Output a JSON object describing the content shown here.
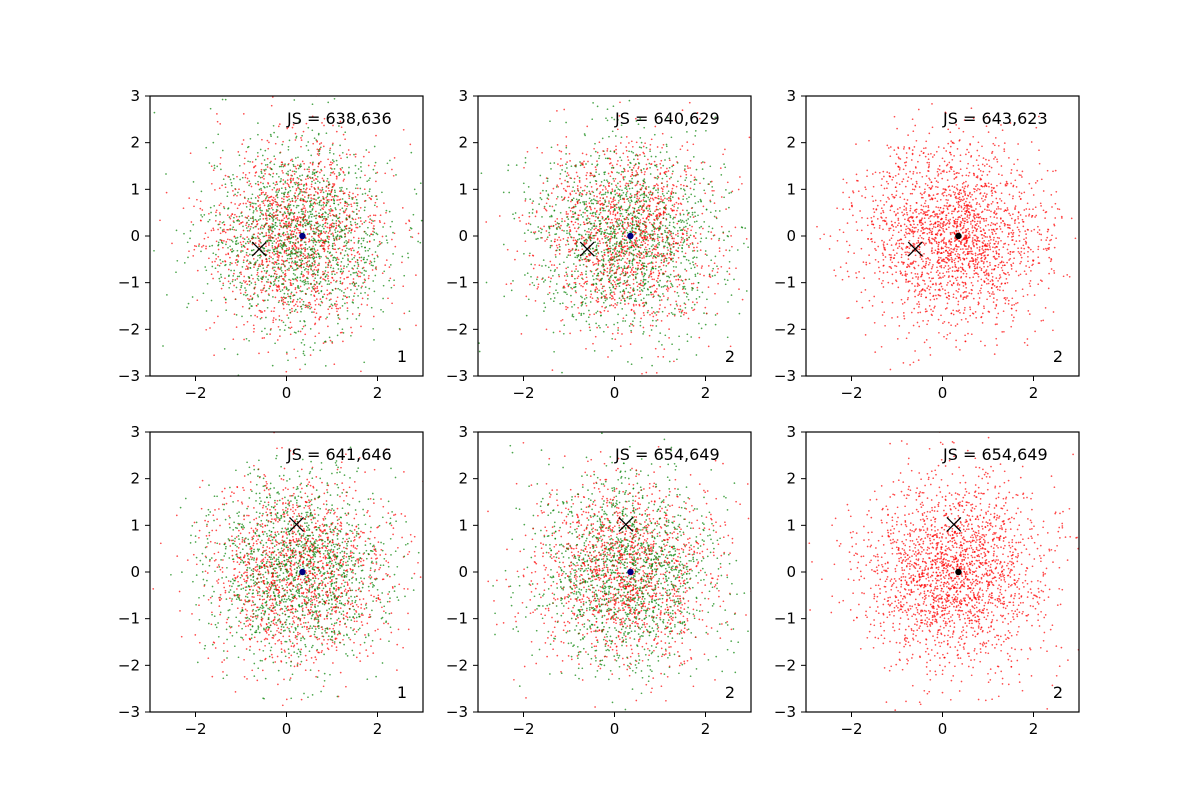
{
  "figure": {
    "background": "#ffffff",
    "layout": "2x3 grid of scatter subplots"
  },
  "chart_data": [
    {
      "type": "scatter",
      "annotation": "JS = 638,636",
      "corner_label": "1",
      "xlim": [
        -3,
        3
      ],
      "ylim": [
        -3,
        3
      ],
      "xticks": [
        -2,
        0,
        2
      ],
      "yticks": [
        -3,
        -2,
        -1,
        0,
        1,
        2,
        3
      ],
      "xtick_labels": [
        "−2",
        "0",
        "2"
      ],
      "ytick_labels": [
        "−3",
        "−2",
        "−1",
        "0",
        "1",
        "2",
        "3"
      ],
      "cloud_colors": [
        "#ff0000",
        "#008000"
      ],
      "cloud_description": "approx. standard-normal point clouds centered near (0.3, 0)",
      "x_marker": {
        "x": -0.6,
        "y": -0.28,
        "color": "#000000"
      },
      "center_dot": {
        "x": 0.35,
        "y": 0.0,
        "color": "#000080"
      }
    },
    {
      "type": "scatter",
      "annotation": "JS = 640,629",
      "corner_label": "2",
      "xlim": [
        -3,
        3
      ],
      "ylim": [
        -3,
        3
      ],
      "xticks": [
        -2,
        0,
        2
      ],
      "yticks": [
        -3,
        -2,
        -1,
        0,
        1,
        2,
        3
      ],
      "xtick_labels": [
        "−2",
        "0",
        "2"
      ],
      "ytick_labels": [
        "−3",
        "−2",
        "−1",
        "0",
        "1",
        "2",
        "3"
      ],
      "cloud_colors": [
        "#008000",
        "#ff0000"
      ],
      "cloud_description": "approx. standard-normal point clouds centered near (0.3, 0)",
      "x_marker": {
        "x": -0.6,
        "y": -0.28,
        "color": "#000000"
      },
      "center_dot": {
        "x": 0.35,
        "y": 0.0,
        "color": "#000080"
      }
    },
    {
      "type": "scatter",
      "annotation": "JS = 643,623",
      "corner_label": "2",
      "xlim": [
        -3,
        3
      ],
      "ylim": [
        -3,
        3
      ],
      "xticks": [
        -2,
        0,
        2
      ],
      "yticks": [
        -3,
        -2,
        -1,
        0,
        1,
        2,
        3
      ],
      "xtick_labels": [
        "−2",
        "0",
        "2"
      ],
      "ytick_labels": [
        "−3",
        "−2",
        "−1",
        "0",
        "1",
        "2",
        "3"
      ],
      "cloud_colors": [
        "#ff0000"
      ],
      "cloud_description": "approx. standard-normal point cloud centered near (0.3, 0)",
      "x_marker": {
        "x": -0.6,
        "y": -0.28,
        "color": "#000000"
      },
      "center_dot": {
        "x": 0.35,
        "y": 0.0,
        "color": "#000000"
      }
    },
    {
      "type": "scatter",
      "annotation": "JS = 641,646",
      "corner_label": "1",
      "xlim": [
        -3,
        3
      ],
      "ylim": [
        -3,
        3
      ],
      "xticks": [
        -2,
        0,
        2
      ],
      "yticks": [
        -3,
        -2,
        -1,
        0,
        1,
        2,
        3
      ],
      "xtick_labels": [
        "−2",
        "0",
        "2"
      ],
      "ytick_labels": [
        "−3",
        "−2",
        "−1",
        "0",
        "1",
        "2",
        "3"
      ],
      "cloud_colors": [
        "#ff0000",
        "#008000"
      ],
      "cloud_description": "approx. standard-normal point clouds centered near (0.3, 0)",
      "x_marker": {
        "x": 0.22,
        "y": 1.02,
        "color": "#000000"
      },
      "center_dot": {
        "x": 0.35,
        "y": 0.0,
        "color": "#000080"
      }
    },
    {
      "type": "scatter",
      "annotation": "JS = 654,649",
      "corner_label": "2",
      "xlim": [
        -3,
        3
      ],
      "ylim": [
        -3,
        3
      ],
      "xticks": [
        -2,
        0,
        2
      ],
      "yticks": [
        -3,
        -2,
        -1,
        0,
        1,
        2,
        3
      ],
      "xtick_labels": [
        "−2",
        "0",
        "2"
      ],
      "ytick_labels": [
        "−3",
        "−2",
        "−1",
        "0",
        "1",
        "2",
        "3"
      ],
      "cloud_colors": [
        "#ff0000",
        "#008000"
      ],
      "cloud_description": "approx. standard-normal point clouds centered near (0.3, 0)",
      "x_marker": {
        "x": 0.25,
        "y": 1.02,
        "color": "#000000"
      },
      "center_dot": {
        "x": 0.35,
        "y": 0.0,
        "color": "#000080"
      }
    },
    {
      "type": "scatter",
      "annotation": "JS = 654,649",
      "corner_label": "2",
      "xlim": [
        -3,
        3
      ],
      "ylim": [
        -3,
        3
      ],
      "xticks": [
        -2,
        0,
        2
      ],
      "yticks": [
        -3,
        -2,
        -1,
        0,
        1,
        2,
        3
      ],
      "xtick_labels": [
        "−2",
        "0",
        "2"
      ],
      "ytick_labels": [
        "−3",
        "−2",
        "−1",
        "0",
        "1",
        "2",
        "3"
      ],
      "cloud_colors": [
        "#ff0000"
      ],
      "cloud_description": "approx. standard-normal point cloud centered near (0.3, 0)",
      "x_marker": {
        "x": 0.25,
        "y": 1.02,
        "color": "#000000"
      },
      "center_dot": {
        "x": 0.35,
        "y": 0.0,
        "color": "#000000"
      }
    }
  ]
}
